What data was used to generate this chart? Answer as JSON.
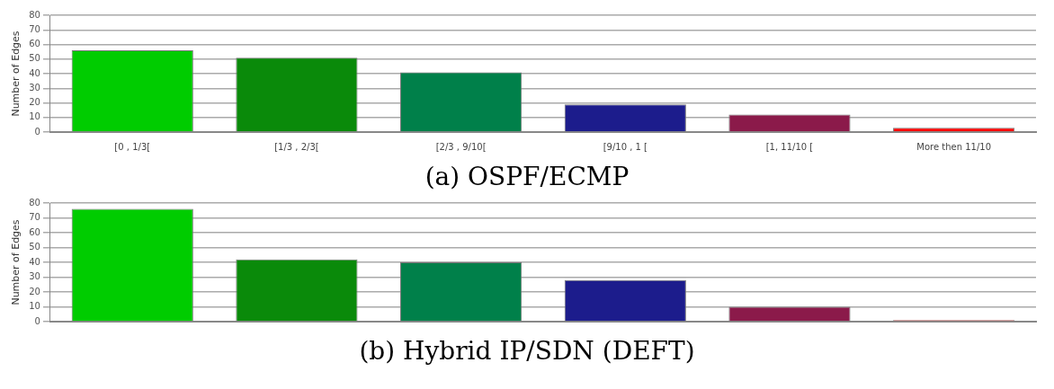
{
  "chart_data": [
    {
      "type": "bar",
      "title": "(a) OSPF/ECMP",
      "ylabel": "Number of Edges",
      "categories": [
        "[0 , 1/3[",
        "[1/3 , 2/3[",
        "[2/3 , 9/10[",
        "[9/10 , 1 [",
        "[1, 11/10 [",
        "More then 11/10"
      ],
      "values": [
        56,
        51,
        41,
        19,
        12,
        3
      ],
      "colors": [
        "#00cc00",
        "#0a8a0a",
        "#00804a",
        "#1c1c8c",
        "#8b1a4a",
        "#ff0000"
      ],
      "ylim": [
        0,
        80
      ],
      "yticks": [
        0,
        10,
        20,
        30,
        40,
        50,
        60,
        70,
        80
      ],
      "grid": "y",
      "legend": false
    },
    {
      "type": "bar",
      "title": "(b) Hybrid IP/SDN (DEFT)",
      "ylabel": "Number of Edges",
      "categories": [
        null,
        null,
        null,
        null,
        null,
        null
      ],
      "values": [
        76,
        42,
        40,
        28,
        10,
        1
      ],
      "colors": [
        "#00cc00",
        "#0a8a0a",
        "#00804a",
        "#1c1c8c",
        "#8b1a4a",
        "#ff0000"
      ],
      "ylim": [
        0,
        80
      ],
      "yticks": [
        0,
        10,
        20,
        30,
        40,
        50,
        60,
        70,
        80
      ],
      "grid": "y",
      "tick_labels": "y",
      "legend": false
    }
  ]
}
